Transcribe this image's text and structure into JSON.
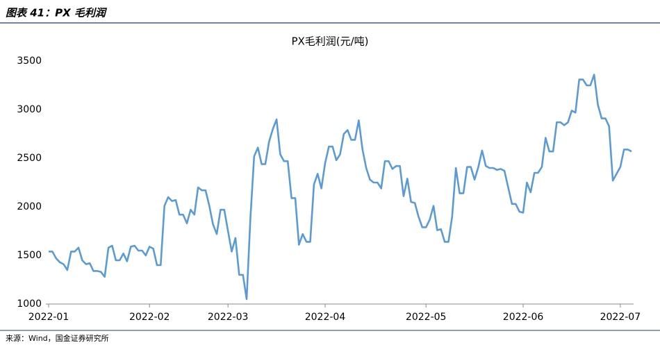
{
  "header": {
    "title": "图表 41：PX 毛利润"
  },
  "chart_data": {
    "type": "line",
    "title": "PX毛利润(元/吨)",
    "categories": [
      "2022-01",
      null,
      null,
      null,
      null,
      null,
      null,
      null,
      null,
      null,
      null,
      null,
      null,
      null,
      null,
      null,
      null,
      null,
      null,
      null,
      null,
      null,
      null,
      null,
      null,
      null,
      null,
      "2022-02",
      null,
      null,
      null,
      null,
      null,
      null,
      null,
      null,
      null,
      null,
      null,
      null,
      null,
      null,
      null,
      null,
      null,
      null,
      null,
      null,
      "2022-03",
      null,
      null,
      null,
      null,
      null,
      null,
      null,
      null,
      null,
      null,
      null,
      null,
      null,
      null,
      null,
      null,
      null,
      null,
      null,
      null,
      null,
      null,
      null,
      null,
      null,
      "2022-04",
      null,
      null,
      null,
      null,
      null,
      null,
      null,
      null,
      null,
      null,
      null,
      null,
      null,
      null,
      null,
      null,
      null,
      null,
      null,
      null,
      null,
      null,
      null,
      null,
      null,
      null,
      "2022-05",
      null,
      null,
      null,
      null,
      null,
      null,
      null,
      null,
      null,
      null,
      null,
      null,
      null,
      null,
      null,
      null,
      null,
      null,
      null,
      null,
      null,
      null,
      null,
      null,
      null,
      "2022-06",
      null,
      null,
      null,
      null,
      null,
      null,
      null,
      null,
      null,
      null,
      null,
      null,
      null,
      null,
      null,
      null,
      null,
      null,
      null,
      null,
      null,
      null,
      null,
      null,
      null,
      "2022-07",
      null,
      null,
      null
    ],
    "series": [
      {
        "name": "PX毛利润",
        "color": "#5b9bd5",
        "values": [
          1540,
          1540,
          1470,
          1430,
          1410,
          1350,
          1540,
          1540,
          1580,
          1450,
          1410,
          1420,
          1340,
          1340,
          1330,
          1280,
          1580,
          1600,
          1450,
          1450,
          1520,
          1440,
          1590,
          1600,
          1550,
          1550,
          1500,
          1590,
          1570,
          1400,
          1400,
          2010,
          2100,
          2060,
          2070,
          1920,
          1920,
          1830,
          1970,
          1920,
          2200,
          2170,
          2170,
          2010,
          1820,
          1720,
          1970,
          1970,
          1750,
          1540,
          1680,
          1300,
          1300,
          1050,
          1880,
          2520,
          2610,
          2440,
          2440,
          2670,
          2800,
          2900,
          2540,
          2470,
          2470,
          2090,
          2090,
          1610,
          1720,
          1640,
          1640,
          2230,
          2340,
          2190,
          2450,
          2620,
          2620,
          2480,
          2540,
          2750,
          2790,
          2690,
          2690,
          2890,
          2590,
          2400,
          2280,
          2250,
          2250,
          2190,
          2470,
          2470,
          2390,
          2420,
          2420,
          2110,
          2290,
          2050,
          2040,
          1900,
          1790,
          1790,
          1870,
          2010,
          1760,
          1770,
          1640,
          1640,
          1900,
          2400,
          2140,
          2140,
          2410,
          2410,
          2280,
          2410,
          2580,
          2420,
          2400,
          2400,
          2380,
          2390,
          2370,
          2200,
          2030,
          2030,
          1950,
          1940,
          2250,
          2150,
          2350,
          2350,
          2410,
          2710,
          2570,
          2570,
          2870,
          2870,
          2840,
          2870,
          2990,
          2970,
          3310,
          3310,
          3250,
          3250,
          3360,
          3050,
          2910,
          2910,
          2830,
          2270,
          2340,
          2410,
          2590,
          2590,
          2570
        ]
      }
    ],
    "ylim": [
      1000,
      3500
    ],
    "yticks": [
      1000,
      1500,
      2000,
      2500,
      3000,
      3500
    ],
    "grid": false
  },
  "footer": {
    "source": "来源：Wind，国金证券研究所"
  }
}
